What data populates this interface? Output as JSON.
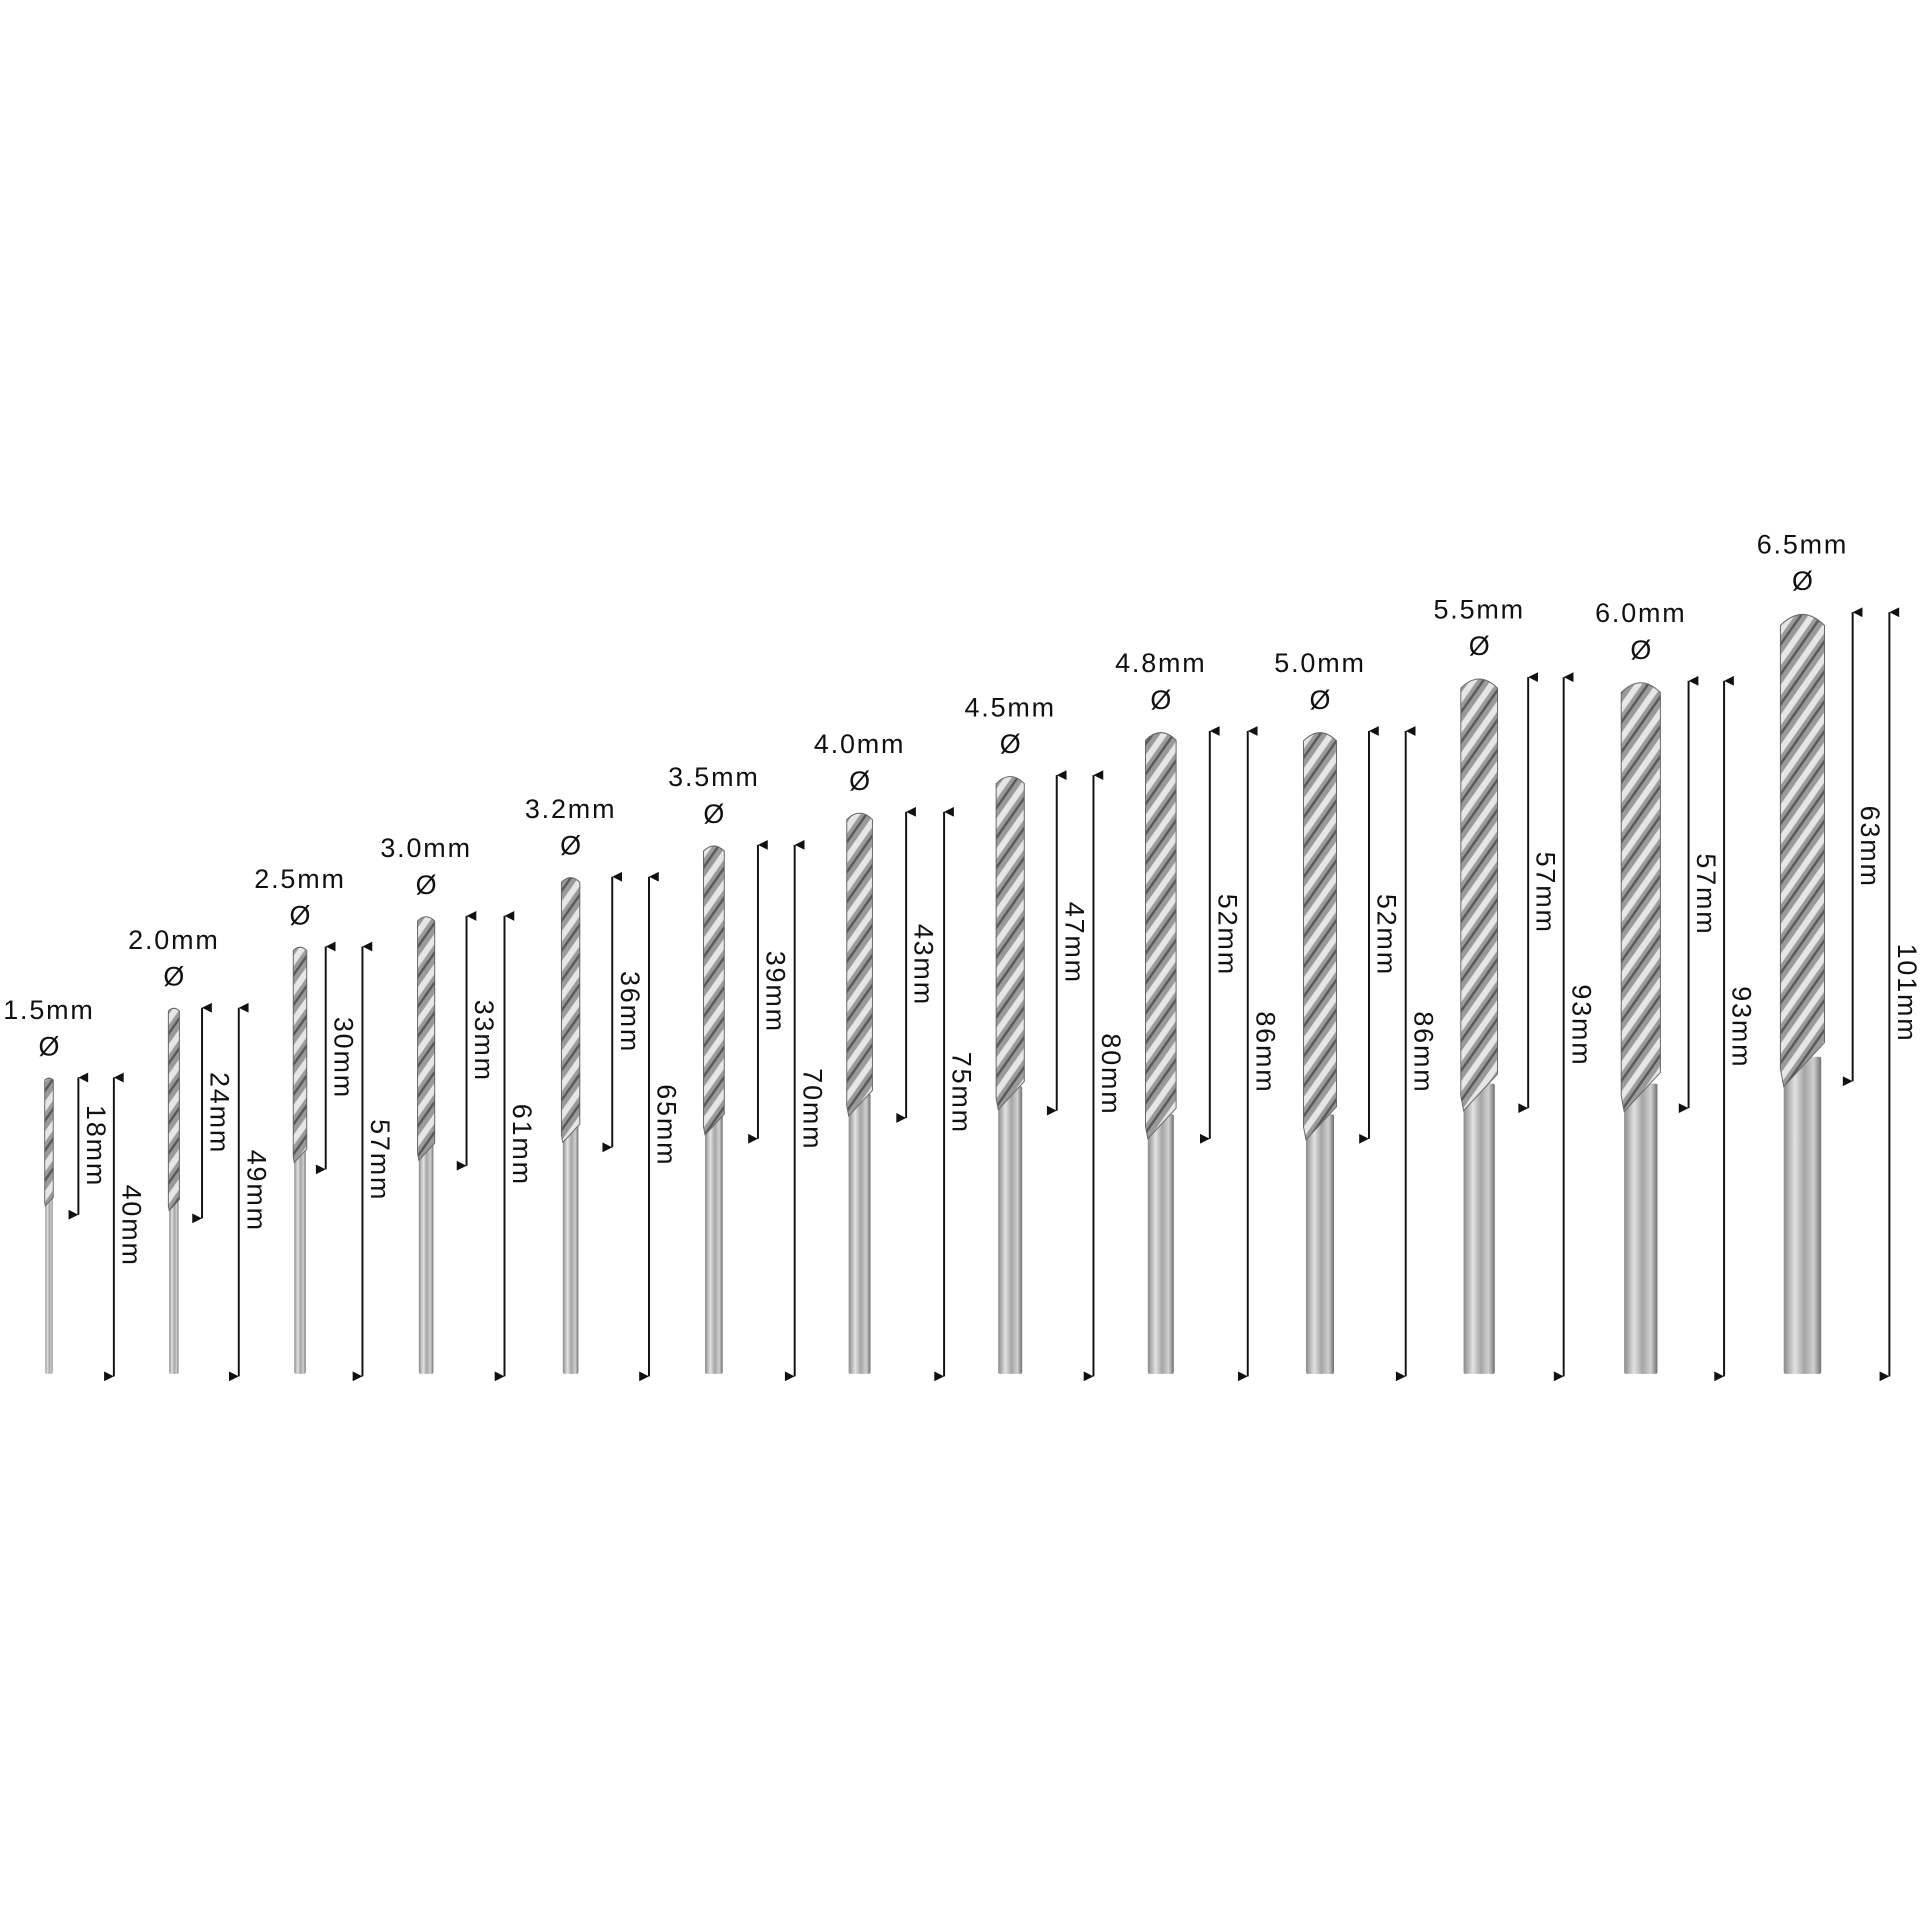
{
  "diagram": {
    "diameter_symbol": "Ø",
    "colors": {
      "background": "#ffffff",
      "text": "#111111",
      "arrow": "#111111",
      "steel_light": "#d8d8d8",
      "steel_dark": "#6e6e6e"
    },
    "drill_bits": [
      {
        "diameter": "1.5mm",
        "flute_length": "18mm",
        "overall_length": "40mm"
      },
      {
        "diameter": "2.0mm",
        "flute_length": "24mm",
        "overall_length": "49mm"
      },
      {
        "diameter": "2.5mm",
        "flute_length": "30mm",
        "overall_length": "57mm"
      },
      {
        "diameter": "3.0mm",
        "flute_length": "33mm",
        "overall_length": "61mm"
      },
      {
        "diameter": "3.2mm",
        "flute_length": "36mm",
        "overall_length": "65mm"
      },
      {
        "diameter": "3.5mm",
        "flute_length": "39mm",
        "overall_length": "70mm"
      },
      {
        "diameter": "4.0mm",
        "flute_length": "43mm",
        "overall_length": "75mm"
      },
      {
        "diameter": "4.5mm",
        "flute_length": "47mm",
        "overall_length": "80mm"
      },
      {
        "diameter": "4.8mm",
        "flute_length": "52mm",
        "overall_length": "86mm"
      },
      {
        "diameter": "5.0mm",
        "flute_length": "52mm",
        "overall_length": "86mm"
      },
      {
        "diameter": "5.5mm",
        "flute_length": "57mm",
        "overall_length": "93mm"
      },
      {
        "diameter": "6.0mm",
        "flute_length": "57mm",
        "overall_length": "93mm"
      },
      {
        "diameter": "6.5mm",
        "flute_length": "63mm",
        "overall_length": "101mm"
      }
    ]
  }
}
